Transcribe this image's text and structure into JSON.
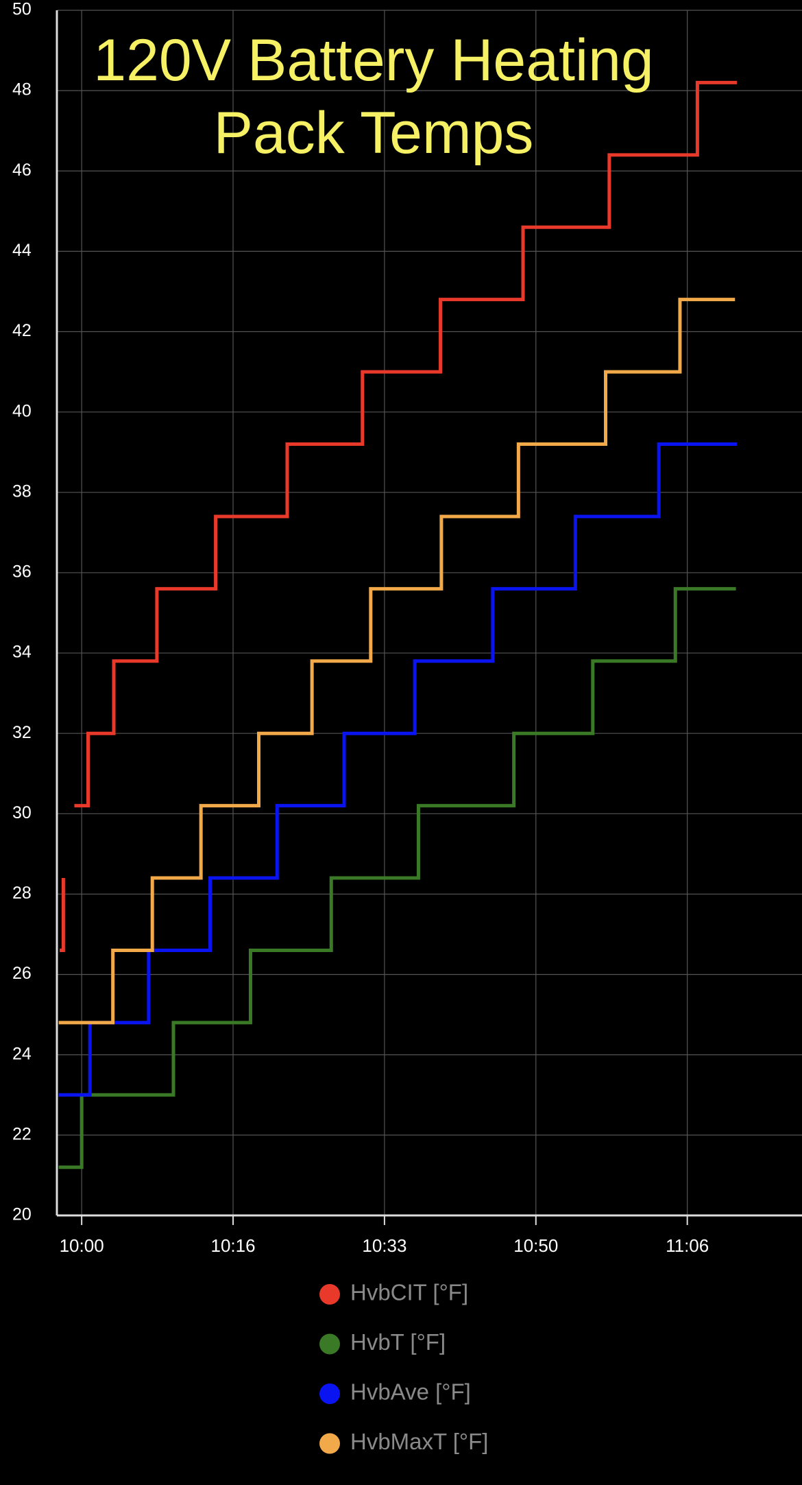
{
  "chart_data": {
    "type": "step-line",
    "title": "120V Battery Heating Pack Temps",
    "xlim": [
      -2.7,
      78.5
    ],
    "xticks": [
      {
        "value": 0,
        "label": "10:00"
      },
      {
        "value": 16.5,
        "label": "10:16"
      },
      {
        "value": 33,
        "label": "10:33"
      },
      {
        "value": 49.5,
        "label": "10:50"
      },
      {
        "value": 66,
        "label": "11:06"
      }
    ],
    "ylim": [
      20,
      50
    ],
    "yticks": [
      20,
      22,
      24,
      26,
      28,
      30,
      32,
      34,
      36,
      38,
      40,
      42,
      44,
      46,
      48,
      50
    ],
    "grid": true,
    "series": [
      {
        "name": "HvbCIT [°F]",
        "color": "#e8392b",
        "x": [
          -2.4,
          -2.0,
          -1.9,
          -0.8,
          0.7,
          3.5,
          8.2,
          14.6,
          22.4,
          30.6,
          39.1,
          48.1,
          57.5,
          67.1,
          71.4
        ],
        "values": [
          26.6,
          28.4,
          null,
          30.2,
          32,
          33.8,
          35.6,
          37.4,
          39.2,
          41,
          42.8,
          44.6,
          46.4,
          48.2,
          48.2
        ]
      },
      {
        "name": "HvbT [°F]",
        "color": "#3a7a26",
        "x": [
          -2.5,
          0,
          10.0,
          18.4,
          27.2,
          36.7,
          47.1,
          55.7,
          64.7,
          71.3
        ],
        "values": [
          21.2,
          23,
          24.8,
          26.6,
          28.4,
          30.2,
          32,
          33.8,
          35.6,
          35.6
        ]
      },
      {
        "name": "HvbAve [°F]",
        "color": "#0a14f0",
        "x": [
          -2.5,
          0.9,
          7.3,
          14.0,
          21.3,
          28.6,
          36.3,
          44.8,
          53.8,
          62.9,
          71.4
        ],
        "values": [
          23,
          24.8,
          26.6,
          28.4,
          30.2,
          32,
          33.8,
          35.6,
          37.4,
          39.2,
          39.2
        ]
      },
      {
        "name": "HvbMaxT [°F]",
        "color": "#f2a94a",
        "x": [
          -2.5,
          3.4,
          7.7,
          13.0,
          19.3,
          25.1,
          31.5,
          39.2,
          47.6,
          57.1,
          65.2,
          71.2
        ],
        "values": [
          24.8,
          26.6,
          28.4,
          30.2,
          32,
          33.8,
          35.6,
          37.4,
          39.2,
          41,
          42.8,
          42.8
        ]
      }
    ]
  }
}
